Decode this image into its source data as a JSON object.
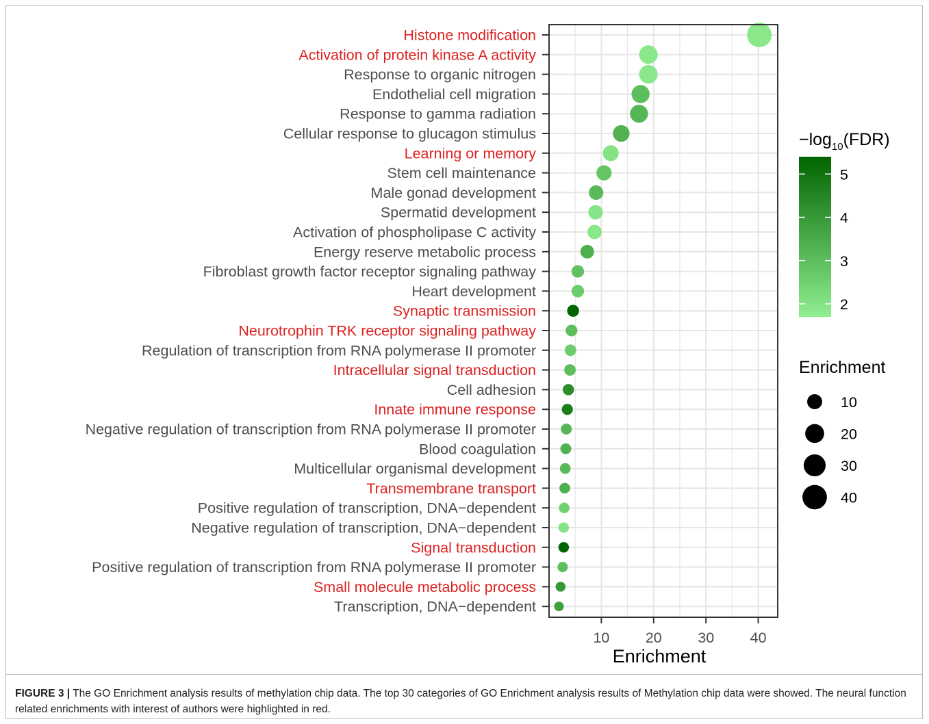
{
  "colors": {
    "highlight": "#dd2222",
    "normal": "#4d4d4d",
    "grid": "#e5e5e5",
    "scale_low": "#90ee90",
    "scale_high": "#006400"
  },
  "caption": {
    "label": "FIGURE 3 |",
    "text": " The GO Enrichment analysis results of methylation chip data. The top 30 categories of GO Enrichment analysis results of Methylation chip data were showed. The neural function related enrichments with interest of authors were highlighted in red."
  },
  "chart_data": {
    "type": "scatter",
    "xlabel": "Enrichment",
    "xlim": [
      0,
      42
    ],
    "xticks": [
      10,
      20,
      30,
      40
    ],
    "grid": true,
    "legend_position": "right",
    "color_legend": {
      "title_main": "−log",
      "title_sub": "10",
      "title_rest": "(FDR)",
      "range": [
        1.7,
        5.4
      ],
      "ticks": [
        2,
        3,
        4,
        5
      ]
    },
    "size_legend": {
      "title": "Enrichment",
      "ticks": [
        10,
        20,
        30,
        40
      ]
    },
    "points": [
      {
        "term": "Histone modification",
        "enrichment": 40.2,
        "neglog10_fdr": 1.85,
        "highlight": true
      },
      {
        "term": "Activation of protein kinase A activity",
        "enrichment": 19.0,
        "neglog10_fdr": 1.85,
        "highlight": true
      },
      {
        "term": "Response to organic nitrogen",
        "enrichment": 19.0,
        "neglog10_fdr": 1.85,
        "highlight": false
      },
      {
        "term": "Endothelial cell migration",
        "enrichment": 17.5,
        "neglog10_fdr": 3.0,
        "highlight": false
      },
      {
        "term": "Response to gamma radiation",
        "enrichment": 17.2,
        "neglog10_fdr": 3.2,
        "highlight": false
      },
      {
        "term": "Cellular response to glucagon stimulus",
        "enrichment": 13.8,
        "neglog10_fdr": 3.3,
        "highlight": false
      },
      {
        "term": "Learning or memory",
        "enrichment": 11.8,
        "neglog10_fdr": 2.0,
        "highlight": true
      },
      {
        "term": "Stem cell maintenance",
        "enrichment": 10.5,
        "neglog10_fdr": 2.8,
        "highlight": false
      },
      {
        "term": "Male gonad development",
        "enrichment": 9.0,
        "neglog10_fdr": 3.1,
        "highlight": false
      },
      {
        "term": "Spermatid development",
        "enrichment": 8.9,
        "neglog10_fdr": 1.95,
        "highlight": false
      },
      {
        "term": "Activation of phospholipase C activity",
        "enrichment": 8.7,
        "neglog10_fdr": 1.85,
        "highlight": false
      },
      {
        "term": "Energy reserve metabolic process",
        "enrichment": 7.3,
        "neglog10_fdr": 3.4,
        "highlight": false
      },
      {
        "term": "Fibroblast growth factor receptor signaling pathway",
        "enrichment": 5.5,
        "neglog10_fdr": 2.9,
        "highlight": false
      },
      {
        "term": "Heart development",
        "enrichment": 5.5,
        "neglog10_fdr": 2.6,
        "highlight": false
      },
      {
        "term": "Synaptic transmission",
        "enrichment": 4.6,
        "neglog10_fdr": 5.4,
        "highlight": true
      },
      {
        "term": "Neurotrophin TRK receptor signaling pathway",
        "enrichment": 4.3,
        "neglog10_fdr": 3.0,
        "highlight": true
      },
      {
        "term": "Regulation of transcription from RNA polymerase II promoter",
        "enrichment": 4.1,
        "neglog10_fdr": 2.6,
        "highlight": false
      },
      {
        "term": "Intracellular signal transduction",
        "enrichment": 4.0,
        "neglog10_fdr": 3.0,
        "highlight": true
      },
      {
        "term": "Cell adhesion",
        "enrichment": 3.7,
        "neglog10_fdr": 4.3,
        "highlight": false
      },
      {
        "term": "Innate immune response",
        "enrichment": 3.5,
        "neglog10_fdr": 4.7,
        "highlight": true
      },
      {
        "term": "Negative regulation of transcription from RNA polymerase II promoter",
        "enrichment": 3.3,
        "neglog10_fdr": 3.2,
        "highlight": false
      },
      {
        "term": "Blood coagulation",
        "enrichment": 3.2,
        "neglog10_fdr": 3.3,
        "highlight": false
      },
      {
        "term": "Multicellular organismal development",
        "enrichment": 3.1,
        "neglog10_fdr": 3.1,
        "highlight": false
      },
      {
        "term": "Transmembrane transport",
        "enrichment": 3.0,
        "neglog10_fdr": 3.4,
        "highlight": true
      },
      {
        "term": "Positive regulation of transcription, DNA−dependent",
        "enrichment": 2.9,
        "neglog10_fdr": 2.5,
        "highlight": false
      },
      {
        "term": "Negative regulation of transcription, DNA−dependent",
        "enrichment": 2.8,
        "neglog10_fdr": 2.0,
        "highlight": false
      },
      {
        "term": "Signal transduction",
        "enrichment": 2.8,
        "neglog10_fdr": 5.4,
        "highlight": true
      },
      {
        "term": "Positive regulation of transcription from RNA polymerase II promoter",
        "enrichment": 2.6,
        "neglog10_fdr": 3.0,
        "highlight": false
      },
      {
        "term": "Small molecule metabolic process",
        "enrichment": 2.2,
        "neglog10_fdr": 4.0,
        "highlight": true
      },
      {
        "term": "Transcription, DNA−dependent",
        "enrichment": 1.9,
        "neglog10_fdr": 3.8,
        "highlight": false
      }
    ]
  }
}
